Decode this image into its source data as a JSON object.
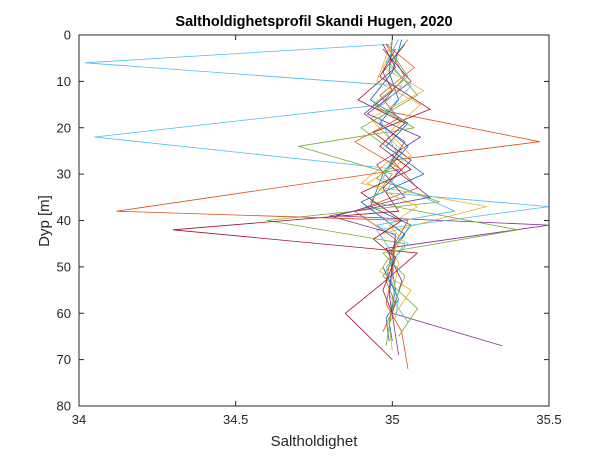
{
  "chart_data": {
    "type": "line",
    "title": "Saltholdighetsprofil Skandi Hugen, 2020",
    "xlabel": "Saltholdighet",
    "ylabel": "Dyp [m]",
    "xlim": [
      34,
      35.5
    ],
    "ylim": [
      0,
      80
    ],
    "y_reversed": true,
    "xticks": [
      34,
      34.5,
      35,
      35.5
    ],
    "xtick_labels": [
      "34",
      "34.5",
      "35",
      "35.5"
    ],
    "yticks": [
      0,
      10,
      20,
      30,
      40,
      50,
      60,
      70,
      80
    ],
    "ytick_labels": [
      "0",
      "10",
      "20",
      "30",
      "40",
      "50",
      "60",
      "70",
      "80"
    ],
    "grid": false,
    "legend": "none",
    "colors": [
      "#0072BD",
      "#D95319",
      "#EDB120",
      "#7E2F8E",
      "#77AC30",
      "#4DBEEE",
      "#A2142F"
    ],
    "series": [
      {
        "values": [
          [
            35.0,
            1
          ],
          [
            34.99,
            8
          ],
          [
            35.02,
            14
          ],
          [
            34.96,
            19
          ],
          [
            35.05,
            24
          ],
          [
            34.97,
            30
          ],
          [
            34.93,
            37
          ],
          [
            35.06,
            41
          ],
          [
            34.99,
            47
          ],
          [
            35.01,
            55
          ],
          [
            34.99,
            62
          ],
          [
            35.0,
            66
          ]
        ]
      },
      {
        "values": [
          [
            34.98,
            2
          ],
          [
            35.04,
            9
          ],
          [
            34.95,
            16
          ],
          [
            35.47,
            23
          ],
          [
            35.0,
            27
          ],
          [
            35.08,
            33
          ],
          [
            34.88,
            38
          ],
          [
            35.01,
            44
          ],
          [
            35.0,
            51
          ],
          [
            34.98,
            58
          ],
          [
            35.03,
            64
          ],
          [
            35.05,
            72
          ]
        ]
      },
      {
        "values": [
          [
            35.02,
            1
          ],
          [
            34.97,
            7
          ],
          [
            35.1,
            12
          ],
          [
            34.93,
            18
          ],
          [
            35.03,
            25
          ],
          [
            34.9,
            32
          ],
          [
            35.3,
            37
          ],
          [
            34.96,
            43
          ],
          [
            35.02,
            49
          ],
          [
            35.0,
            57
          ],
          [
            34.99,
            63
          ],
          [
            35.0,
            68
          ]
        ]
      },
      {
        "values": [
          [
            34.97,
            3
          ],
          [
            35.06,
            10
          ],
          [
            34.92,
            17
          ],
          [
            35.09,
            22
          ],
          [
            34.95,
            28
          ],
          [
            35.04,
            35
          ],
          [
            34.82,
            39
          ],
          [
            35.5,
            41
          ],
          [
            34.98,
            46
          ],
          [
            35.03,
            53
          ],
          [
            35.0,
            60
          ],
          [
            35.35,
            67
          ]
        ]
      },
      {
        "values": [
          [
            35.05,
            1
          ],
          [
            34.99,
            6
          ],
          [
            35.08,
            13
          ],
          [
            34.9,
            20
          ],
          [
            35.02,
            26
          ],
          [
            34.95,
            31
          ],
          [
            35.15,
            36
          ],
          [
            34.6,
            40
          ],
          [
            35.04,
            45
          ],
          [
            34.97,
            52
          ],
          [
            35.08,
            59
          ],
          [
            35.02,
            65
          ]
        ]
      },
      {
        "values": [
          [
            34.99,
            2
          ],
          [
            34.02,
            6
          ],
          [
            35.03,
            11
          ],
          [
            34.97,
            15
          ],
          [
            34.05,
            22
          ],
          [
            35.02,
            29
          ],
          [
            34.98,
            34
          ],
          [
            35.5,
            37
          ],
          [
            34.95,
            42
          ],
          [
            35.01,
            48
          ],
          [
            34.99,
            56
          ],
          [
            35.05,
            62
          ]
        ]
      },
      {
        "values": [
          [
            35.01,
            3
          ],
          [
            34.96,
            9
          ],
          [
            35.12,
            16
          ],
          [
            34.94,
            21
          ],
          [
            35.06,
            27
          ],
          [
            34.97,
            33
          ],
          [
            35.02,
            38
          ],
          [
            34.3,
            42
          ],
          [
            35.08,
            47
          ],
          [
            34.96,
            54
          ],
          [
            34.85,
            60
          ],
          [
            35.0,
            70
          ]
        ]
      },
      {
        "values": [
          [
            35.03,
            1
          ],
          [
            35.0,
            8
          ],
          [
            34.93,
            14
          ],
          [
            35.05,
            19
          ],
          [
            34.98,
            24
          ],
          [
            35.1,
            30
          ],
          [
            34.9,
            36
          ],
          [
            35.04,
            43
          ],
          [
            34.97,
            50
          ],
          [
            35.02,
            57
          ],
          [
            34.98,
            61
          ],
          [
            34.99,
            66
          ]
        ]
      },
      {
        "values": [
          [
            34.98,
            2
          ],
          [
            35.07,
            7
          ],
          [
            34.96,
            13
          ],
          [
            35.02,
            18
          ],
          [
            34.88,
            23
          ],
          [
            35.03,
            29
          ],
          [
            34.12,
            38
          ],
          [
            35.05,
            40
          ],
          [
            35.0,
            46
          ],
          [
            34.98,
            53
          ],
          [
            35.01,
            58
          ],
          [
            34.97,
            64
          ]
        ]
      },
      {
        "values": [
          [
            35.0,
            1
          ],
          [
            34.95,
            10
          ],
          [
            35.09,
            15
          ],
          [
            34.99,
            21
          ],
          [
            35.06,
            26
          ],
          [
            34.92,
            32
          ],
          [
            35.08,
            37
          ],
          [
            34.99,
            41
          ],
          [
            35.03,
            44
          ],
          [
            34.96,
            51
          ],
          [
            35.06,
            55
          ],
          [
            34.98,
            63
          ]
        ]
      },
      {
        "values": [
          [
            35.04,
            2
          ],
          [
            34.97,
            8
          ],
          [
            35.0,
            12
          ],
          [
            34.91,
            17
          ],
          [
            35.04,
            23
          ],
          [
            34.99,
            28
          ],
          [
            35.12,
            35
          ],
          [
            34.8,
            39
          ],
          [
            35.01,
            43
          ],
          [
            35.0,
            49
          ],
          [
            34.99,
            56
          ],
          [
            35.02,
            69
          ]
        ]
      },
      {
        "values": [
          [
            34.99,
            3
          ],
          [
            35.05,
            9
          ],
          [
            34.94,
            15
          ],
          [
            35.07,
            20
          ],
          [
            34.7,
            24
          ],
          [
            35.0,
            30
          ],
          [
            34.93,
            36
          ],
          [
            35.4,
            42
          ],
          [
            34.97,
            47
          ],
          [
            35.04,
            52
          ],
          [
            35.0,
            59
          ],
          [
            34.98,
            67
          ]
        ]
      },
      {
        "values": [
          [
            35.02,
            1
          ],
          [
            34.98,
            6
          ],
          [
            35.06,
            11
          ],
          [
            34.96,
            18
          ],
          [
            35.01,
            25
          ],
          [
            34.97,
            31
          ],
          [
            35.2,
            38
          ],
          [
            34.95,
            41
          ],
          [
            35.05,
            45
          ],
          [
            34.98,
            50
          ],
          [
            35.02,
            57
          ],
          [
            35.01,
            61
          ]
        ]
      },
      {
        "values": [
          [
            34.97,
            2
          ],
          [
            35.01,
            7
          ],
          [
            34.89,
            14
          ],
          [
            35.04,
            19
          ],
          [
            34.96,
            24
          ],
          [
            35.06,
            29
          ],
          [
            34.9,
            34
          ],
          [
            35.03,
            40
          ],
          [
            34.94,
            44
          ],
          [
            35.01,
            48
          ],
          [
            34.97,
            55
          ],
          [
            35.0,
            60
          ]
        ]
      }
    ]
  }
}
